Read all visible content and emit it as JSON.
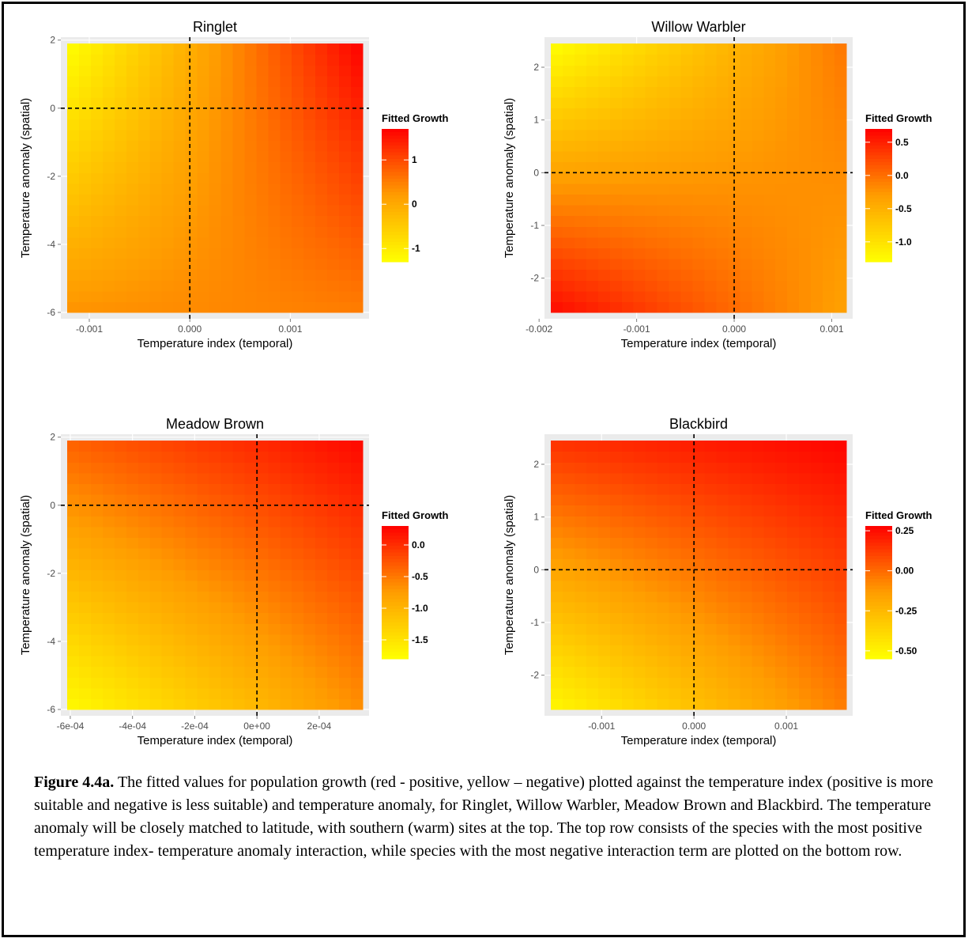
{
  "caption": {
    "label": "Figure 4.4a.",
    "text": "The fitted values for population growth (red - positive, yellow – negative) plotted against the temperature index (positive is more suitable and negative is less suitable) and temperature anomaly, for Ringlet, Willow Warbler, Meadow Brown and Blackbird. The temperature anomaly will be closely matched to latitude, with southern (warm) sites at the top. The top row consists of the species with the most positive temperature index- temperature anomaly interaction, while species with the most negative interaction term are plotted on the bottom row."
  },
  "colors": {
    "low": "#ffff00",
    "mid": "#ff9d00",
    "high": "#ff0000",
    "panel_bg": "#ebebeb",
    "grid": "#ffffff"
  },
  "chart_data": [
    {
      "type": "heatmap",
      "title": "Ringlet",
      "xlabel": "Temperature index (temporal)",
      "ylabel": "Temperature anomaly (spatial)",
      "xlim": [
        -0.00122,
        0.00172
      ],
      "ylim": [
        -6.0,
        1.9
      ],
      "xticks": [
        -0.001,
        0.0,
        0.001
      ],
      "xticklabels": [
        "-0.001",
        "0.000",
        "0.001"
      ],
      "yticks": [
        -6,
        -4,
        -2,
        0,
        2
      ],
      "yticklabels": [
        "-6",
        "-4",
        "-2",
        "0",
        "2"
      ],
      "vlines": [
        0.0
      ],
      "hlines": [
        0.0
      ],
      "corners": {
        "bottom_left": 0.3,
        "bottom_right": 0.5,
        "top_left": -1.3,
        "top_right": 1.7
      },
      "legend": {
        "title": "Fitted Growth",
        "min": -1.3,
        "max": 1.7,
        "ticks": [
          1,
          0,
          -1
        ],
        "ticklabels": [
          "1",
          "0",
          "-1"
        ]
      }
    },
    {
      "type": "heatmap",
      "title": "Willow Warbler",
      "xlabel": "Temperature index (temporal)",
      "ylabel": "Temperature anomaly (spatial)",
      "xlim": [
        -0.00188,
        0.00115
      ],
      "ylim": [
        -2.65,
        2.45
      ],
      "xticks": [
        -0.002,
        -0.001,
        0.0,
        0.001
      ],
      "xticklabels": [
        "-0.002",
        "-0.001",
        "0.000",
        "0.001"
      ],
      "yticks": [
        -2,
        -1,
        0,
        1,
        2
      ],
      "yticklabels": [
        "-2",
        "-1",
        "0",
        "1",
        "2"
      ],
      "vlines": [
        0.0
      ],
      "hlines": [
        0.0
      ],
      "corners": {
        "bottom_left": 0.65,
        "bottom_right": -0.35,
        "top_left": -1.3,
        "top_right": -0.05
      },
      "legend": {
        "title": "Fitted Growth",
        "min": -1.3,
        "max": 0.7,
        "ticks": [
          0.5,
          0.0,
          -0.5,
          -1.0
        ],
        "ticklabels": [
          "0.5",
          "0.0",
          "-0.5",
          "-1.0"
        ]
      }
    },
    {
      "type": "heatmap",
      "title": "Meadow Brown",
      "xlabel": "Temperature index (temporal)",
      "ylabel": "Temperature anomaly (spatial)",
      "xlim": [
        -0.00061,
        0.00034
      ],
      "ylim": [
        -6.0,
        1.9
      ],
      "xticks": [
        -0.0006,
        -0.0004,
        -0.0002,
        0.0,
        0.0002
      ],
      "xticklabels": [
        "-6e-04",
        "-4e-04",
        "-2e-04",
        "0e+00",
        "2e-04"
      ],
      "yticks": [
        -6,
        -4,
        -2,
        0,
        2
      ],
      "yticklabels": [
        "-6",
        "-4",
        "-2",
        "0",
        "2"
      ],
      "vlines": [
        0.0
      ],
      "hlines": [
        0.0
      ],
      "corners": {
        "bottom_left": -1.75,
        "bottom_right": -0.65,
        "top_left": -0.35,
        "top_right": 0.25
      },
      "legend": {
        "title": "Fitted Growth",
        "min": -1.8,
        "max": 0.3,
        "ticks": [
          0.0,
          -0.5,
          -1.0,
          -1.5
        ],
        "ticklabels": [
          "0.0",
          "-0.5",
          "-1.0",
          "-1.5"
        ]
      }
    },
    {
      "type": "heatmap",
      "title": "Blackbird",
      "xlabel": "Temperature index (temporal)",
      "ylabel": "Temperature anomaly (spatial)",
      "xlim": [
        -0.00155,
        0.00165
      ],
      "ylim": [
        -2.65,
        2.45
      ],
      "xticks": [
        -0.001,
        0.0,
        0.001
      ],
      "xticklabels": [
        "-0.001",
        "0.000",
        "0.001"
      ],
      "yticks": [
        -2,
        -1,
        0,
        1,
        2
      ],
      "yticklabels": [
        "-2",
        "-1",
        "0",
        "1",
        "2"
      ],
      "vlines": [
        0.0
      ],
      "hlines": [
        0.0
      ],
      "corners": {
        "bottom_left": -0.52,
        "bottom_right": -0.05,
        "top_left": 0.15,
        "top_right": 0.27
      },
      "legend": {
        "title": "Fitted Growth",
        "min": -0.55,
        "max": 0.28,
        "ticks": [
          0.25,
          0.0,
          -0.25,
          -0.5
        ],
        "ticklabels": [
          "0.25",
          "0.00",
          "-0.25",
          "-0.50"
        ]
      }
    }
  ]
}
